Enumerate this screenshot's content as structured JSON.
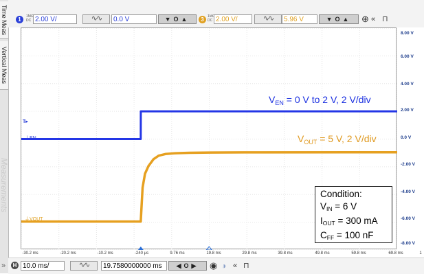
{
  "side_tabs": [
    "Time Meas",
    "Vertical Meas",
    "Measurements"
  ],
  "top_toolbar": {
    "ch1": {
      "number": "1",
      "coupling": "1MΩ DC",
      "scale": "2.00 V/",
      "offset": "0.0 V",
      "color": "#2a3fd8"
    },
    "ch3": {
      "number": "3",
      "coupling": "1MΩ DC",
      "scale": "2.00 V/",
      "offset": "5.96 V",
      "color": "#e0a020"
    }
  },
  "bottom_toolbar": {
    "mode": "H",
    "timebase": "10.0 ms/",
    "position": "19.7580000000 ms",
    "collapse": "»"
  },
  "y_ticks": [
    "8.00 V",
    "6.00 V",
    "4.00 V",
    "2.00 V",
    "0.0 V",
    "-2.00 V",
    "-4.00 V",
    "-6.00 V",
    "-8.00 V"
  ],
  "x_ticks": [
    "-30.2 ms",
    "-20.2 ms",
    "-10.2 ms",
    "-240 µs",
    "9.76 ms",
    "19.8 ms",
    "29.8 ms",
    "39.8 ms",
    "49.8 ms",
    "59.8 ms",
    "69.8 ms",
    "1"
  ],
  "channel_labels": {
    "en": "EN",
    "vout": "VOUT",
    "trigger": "T"
  },
  "annotations": {
    "ven": {
      "main": "V",
      "sub": "EN",
      "rest": " = 0 V to 2 V, 2 V/div",
      "color": "#1a2fe0"
    },
    "vout": {
      "main": "V",
      "sub": "OUT",
      "rest": " = 5 V, 2 V/div",
      "color": "#e09a20"
    }
  },
  "condition": {
    "title": "Condition:",
    "lines": [
      {
        "main": "V",
        "sub": "IN",
        "rest": " = 6 V"
      },
      {
        "main": "I",
        "sub": "OUT",
        "rest": " = 300 mA"
      },
      {
        "main": "C",
        "sub": "FF",
        "rest": " = 100 nF"
      }
    ]
  },
  "chart_data": {
    "type": "line",
    "xlabel": "",
    "ylabel": "",
    "x_unit": "ms",
    "y_unit": "V",
    "xlim": [
      -35.2,
      74.8
    ],
    "ylim": [
      -8,
      8
    ],
    "grid": true,
    "series": [
      {
        "name": "V_EN = 0 V to 2 V, 2 V/div",
        "color": "#2436e6",
        "x": [
          -35.2,
          -0.24,
          -0.23,
          74.8
        ],
        "y": [
          0.0,
          0.0,
          2.0,
          2.0
        ]
      },
      {
        "name": "V_OUT = 5 V, 2 V/div",
        "color": "#e6a020",
        "x": [
          -35.2,
          -0.24,
          0.3,
          1.0,
          2.0,
          3.5,
          5.0,
          7.0,
          10.0,
          14.0,
          20.0,
          30.0,
          74.8
        ],
        "y": [
          -5.95,
          -5.95,
          -3.5,
          -2.5,
          -1.95,
          -1.45,
          -1.2,
          -1.08,
          -1.02,
          -0.99,
          -0.97,
          -0.96,
          -0.95
        ]
      }
    ]
  }
}
